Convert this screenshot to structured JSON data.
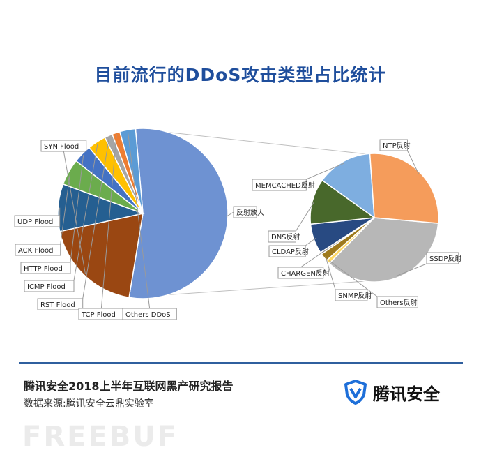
{
  "chart_data": {
    "type": "pie",
    "title": "目前流行的DDoS攻击类型占比统计",
    "main_pie": {
      "slices": [
        {
          "label": "反射放大",
          "value": 54.0,
          "color": "#6e92d2"
        },
        {
          "label": "SYN Flood",
          "value": 19.0,
          "color": "#9a4712"
        },
        {
          "label": "UDP Flood",
          "value": 9.0,
          "color": "#255f91"
        },
        {
          "label": "ACK Flood",
          "value": 5.0,
          "color": "#6bac4d"
        },
        {
          "label": "HTTP Flood",
          "value": 3.5,
          "color": "#4472c4"
        },
        {
          "label": "ICMP Flood",
          "value": 3.5,
          "color": "#ffc000"
        },
        {
          "label": "RST Flood",
          "value": 1.5,
          "color": "#a5a5a5"
        },
        {
          "label": "TCP Flood",
          "value": 1.5,
          "color": "#ed7d31"
        },
        {
          "label": "Others DDoS",
          "value": 3.0,
          "color": "#5b9bd5"
        }
      ]
    },
    "sub_pie": {
      "slices": [
        {
          "label": "SSDP反射",
          "value": 36.0,
          "color": "#b7b7b7"
        },
        {
          "label": "Others反射",
          "value": 1.0,
          "color": "#ffd966"
        },
        {
          "label": "SNMP反射",
          "value": 2.0,
          "color": "#9e7a1d"
        },
        {
          "label": "CHARGEN反射",
          "value": 0.5,
          "color": "#8c8c8c"
        },
        {
          "label": "CLDAP反射",
          "value": 7.5,
          "color": "#284a82"
        },
        {
          "label": "DNS反射",
          "value": 11.5,
          "color": "#48682b"
        },
        {
          "label": "MEMCACHED反射",
          "value": 14.0,
          "color": "#7eaee0"
        },
        {
          "label": "NTP反射",
          "value": 27.5,
          "color": "#f59c5b"
        }
      ]
    }
  },
  "footer": {
    "report_title": "腾讯安全2018上半年互联网黑产研究报告",
    "source": "数据来源:腾讯安全云鼎实验室",
    "brand_name": "腾讯安全"
  },
  "watermark": "FREEBUF",
  "colors": {
    "title": "#1f4e9c",
    "divider": "#2f5f9e",
    "brand": "#1e6fd9"
  }
}
